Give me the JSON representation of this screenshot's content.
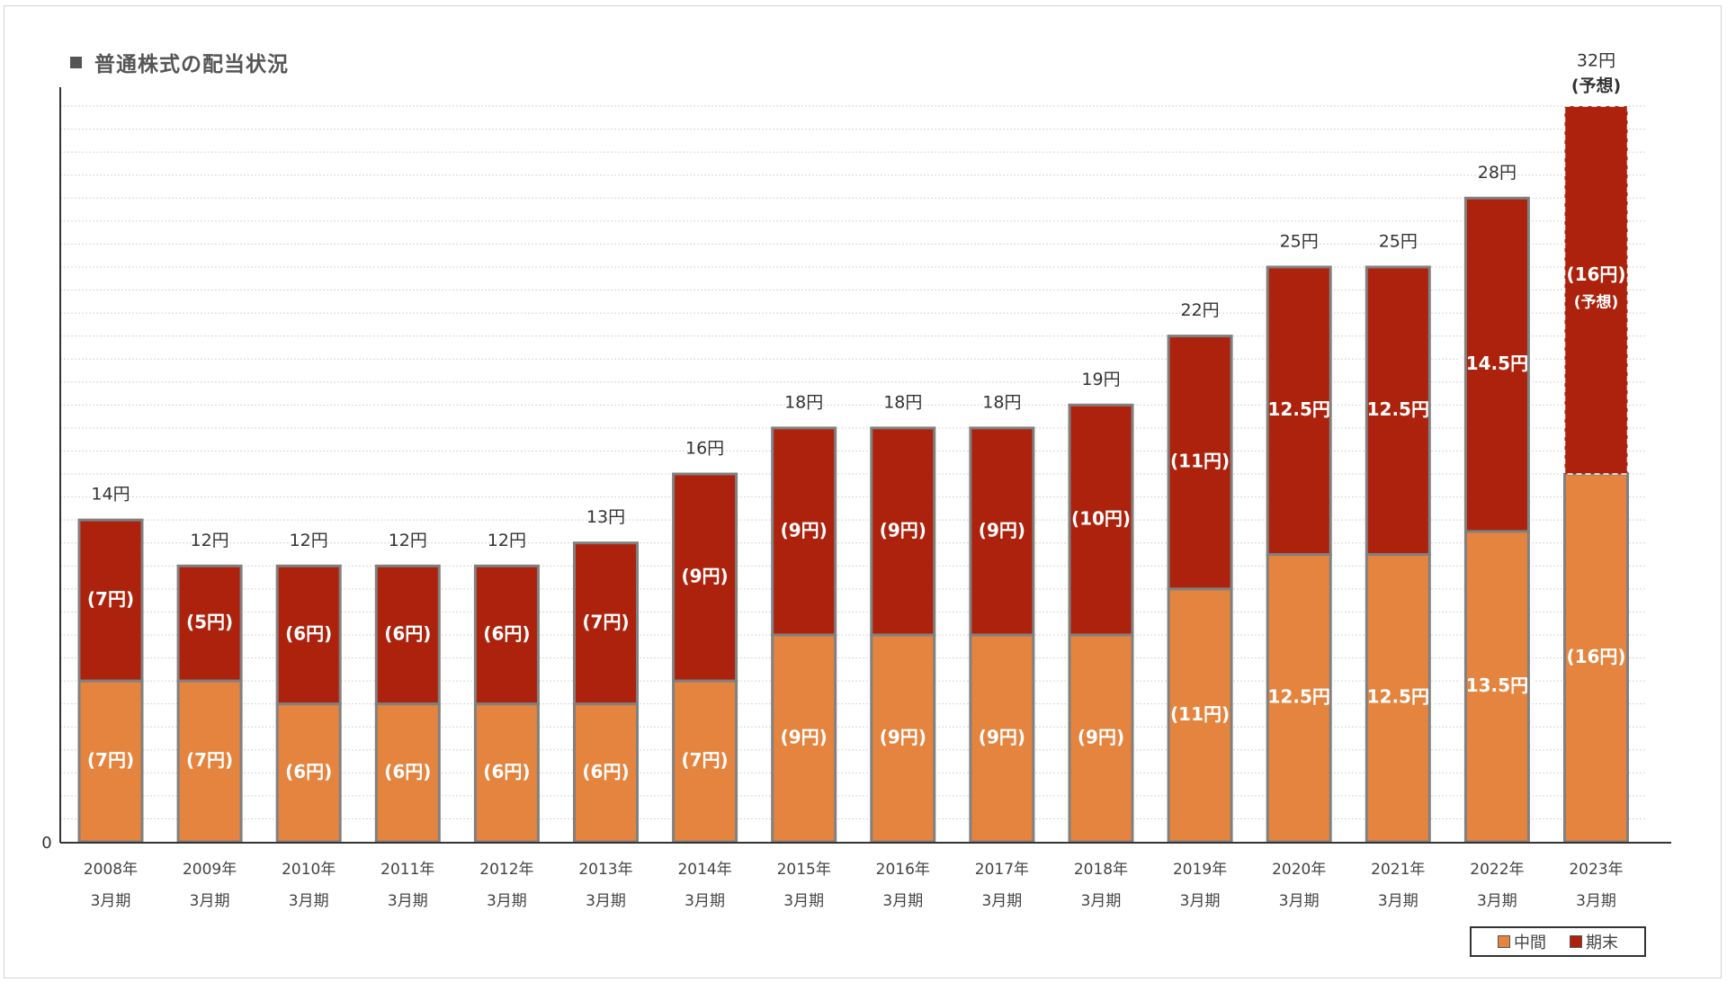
{
  "chart": {
    "title": "普通株式の配当状況",
    "zero_label": "0",
    "legend": {
      "interim_label": "中間",
      "final_label": "期末"
    }
  },
  "colors": {
    "interim": "#e4843e",
    "final": "#ad220c",
    "bar_border": "#808080",
    "grid": "#d6d6d6",
    "axis": "#333333"
  },
  "chart_data": {
    "type": "bar",
    "stacked": true,
    "title": "普通株式の配当状況",
    "ylim": [
      0,
      32
    ],
    "grid": true,
    "legend_position": "bottom-right",
    "categories": [
      [
        "2008年",
        "3月期"
      ],
      [
        "2009年",
        "3月期"
      ],
      [
        "2010年",
        "3月期"
      ],
      [
        "2011年",
        "3月期"
      ],
      [
        "2012年",
        "3月期"
      ],
      [
        "2013年",
        "3月期"
      ],
      [
        "2014年",
        "3月期"
      ],
      [
        "2015年",
        "3月期"
      ],
      [
        "2016年",
        "3月期"
      ],
      [
        "2017年",
        "3月期"
      ],
      [
        "2018年",
        "3月期"
      ],
      [
        "2019年",
        "3月期"
      ],
      [
        "2020年",
        "3月期"
      ],
      [
        "2021年",
        "3月期"
      ],
      [
        "2022年",
        "3月期"
      ],
      [
        "2023年",
        "3月期"
      ]
    ],
    "series": [
      {
        "name": "中間",
        "values": [
          7,
          7,
          6,
          6,
          6,
          6,
          7,
          9,
          9,
          9,
          9,
          11,
          12.5,
          12.5,
          13.5,
          16
        ],
        "labels": [
          "(7円)",
          "(7円)",
          "(6円)",
          "(6円)",
          "(6円)",
          "(6円)",
          "(7円)",
          "(9円)",
          "(9円)",
          "(9円)",
          "(9円)",
          "(11円)",
          "(12.5円)",
          "(12.5円)",
          "(13.5円)",
          "(16円)"
        ]
      },
      {
        "name": "期末",
        "values": [
          7,
          5,
          6,
          6,
          6,
          7,
          9,
          9,
          9,
          9,
          10,
          11,
          12.5,
          12.5,
          14.5,
          16
        ],
        "labels": [
          "(7円)",
          "(5円)",
          "(6円)",
          "(6円)",
          "(6円)",
          "(7円)",
          "(9円)",
          "(9円)",
          "(9円)",
          "(9円)",
          "(10円)",
          "(11円)",
          "(12.5円)",
          "(12.5円)",
          "(14.5円)",
          "(16円)"
        ]
      }
    ],
    "totals": [
      "14円",
      "12円",
      "12円",
      "12円",
      "12円",
      "13円",
      "16円",
      "18円",
      "18円",
      "18円",
      "19円",
      "22円",
      "25円",
      "25円",
      "28円",
      "32円"
    ],
    "forecast": {
      "category_index": 15,
      "total_note": "(予想)",
      "final_note": "(予想)"
    }
  }
}
